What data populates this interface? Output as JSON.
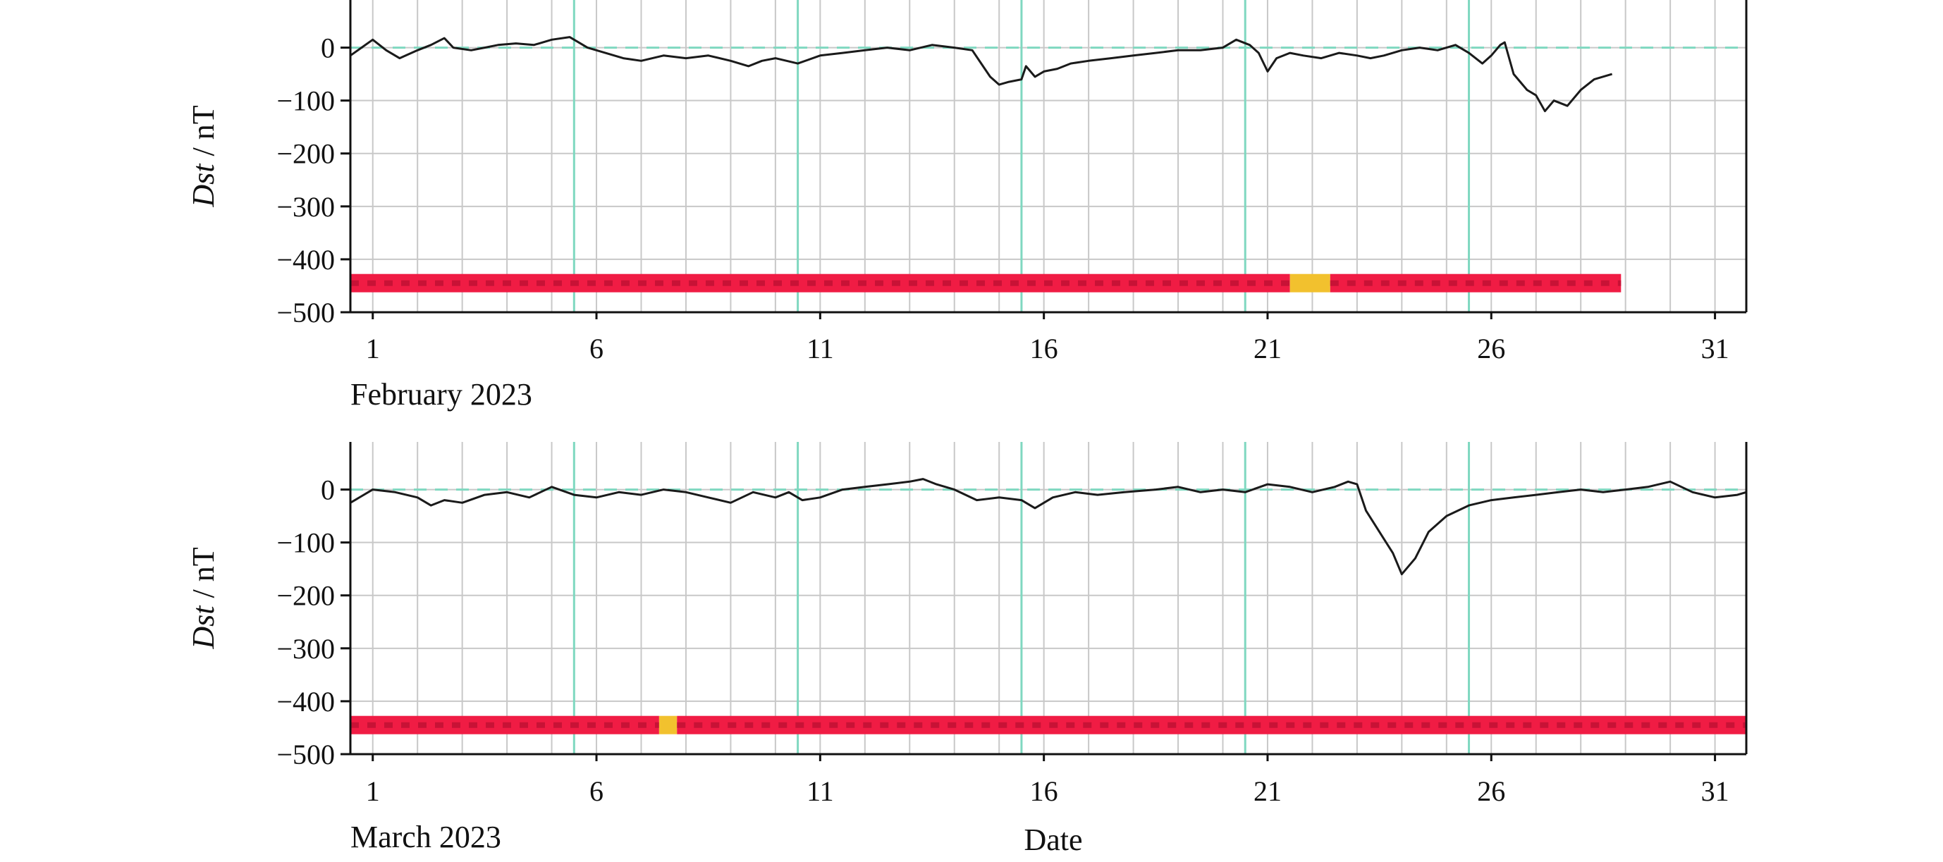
{
  "figure": {
    "date_label": "Date"
  },
  "colors": {
    "trace": "#1a1a1a",
    "grid": "#c8c8c8",
    "major_grid": "#7fd8c0",
    "zero_line": "#7fd8c0",
    "status_red": "#f01c44",
    "status_red_dash": "#c81236",
    "status_yellow": "#f2c12e"
  },
  "chart_data": [
    {
      "type": "line",
      "month_label": "February 2023",
      "ylabel_italic": "Dst",
      "ylabel_unit": " / nT",
      "ylim": [
        -500,
        90
      ],
      "xlim": [
        0.5,
        31.7
      ],
      "x_ticks": [
        1,
        6,
        11,
        16,
        21,
        26,
        31
      ],
      "x_tick_labels": [
        "1",
        "6",
        "11",
        "16",
        "21",
        "26",
        "31"
      ],
      "y_ticks": [
        0,
        -100,
        -200,
        -300,
        -400,
        -500
      ],
      "y_tick_labels": [
        "0",
        "−100",
        "−200",
        "−300",
        "−400",
        "−500"
      ],
      "major_day_lines": [
        5.5,
        10.5,
        15.5,
        20.5,
        25.5
      ],
      "grid": true,
      "series": [
        {
          "x": [
            0.5,
            1.0,
            1.3,
            1.6,
            2.0,
            2.3,
            2.6,
            2.8,
            3.2,
            3.5,
            3.8,
            4.2,
            4.6,
            5.0,
            5.4,
            5.6,
            5.8,
            6.2,
            6.6,
            7.0,
            7.5,
            8.0,
            8.5,
            9.0,
            9.4,
            9.7,
            10.0,
            10.5,
            11.0,
            11.5,
            12.0,
            12.5,
            13.0,
            13.5,
            14.0,
            14.4,
            14.6,
            14.8,
            15.0,
            15.2,
            15.5,
            15.6,
            15.8,
            16.0,
            16.3,
            16.6,
            17.0,
            17.5,
            18.0,
            18.5,
            19.0,
            19.5,
            20.0,
            20.3,
            20.6,
            20.8,
            21.0,
            21.2,
            21.5,
            21.8,
            22.2,
            22.6,
            23.0,
            23.3,
            23.6,
            24.0,
            24.4,
            24.8,
            25.2,
            25.5,
            25.8,
            26.0,
            26.2,
            26.3,
            26.5,
            26.8,
            27.0,
            27.2,
            27.4,
            27.7,
            28.0,
            28.3,
            28.7
          ],
          "y": [
            -15,
            15,
            -5,
            -20,
            -5,
            5,
            18,
            0,
            -5,
            0,
            5,
            8,
            5,
            15,
            20,
            10,
            0,
            -10,
            -20,
            -25,
            -15,
            -20,
            -15,
            -25,
            -35,
            -25,
            -20,
            -30,
            -15,
            -10,
            -5,
            0,
            -5,
            5,
            0,
            -5,
            -30,
            -55,
            -70,
            -65,
            -60,
            -35,
            -55,
            -45,
            -40,
            -30,
            -25,
            -20,
            -15,
            -10,
            -5,
            -5,
            0,
            15,
            5,
            -10,
            -45,
            -20,
            -10,
            -15,
            -20,
            -10,
            -15,
            -20,
            -15,
            -5,
            0,
            -5,
            5,
            -10,
            -30,
            -15,
            5,
            10,
            -50,
            -80,
            -90,
            -120,
            -100,
            -110,
            -80,
            -60,
            -50
          ]
        }
      ],
      "status_bar": {
        "y": -445,
        "end_day": 28.9,
        "segments": [
          {
            "status": "red",
            "start": 0.5,
            "end": 21.5
          },
          {
            "status": "yellow",
            "start": 21.5,
            "end": 22.4
          },
          {
            "status": "red",
            "start": 22.4,
            "end": 28.9
          }
        ]
      }
    },
    {
      "type": "line",
      "month_label": "March 2023",
      "ylabel_italic": "Dst",
      "ylabel_unit": " / nT",
      "ylim": [
        -500,
        90
      ],
      "xlim": [
        0.5,
        31.7
      ],
      "x_ticks": [
        1,
        6,
        11,
        16,
        21,
        26,
        31
      ],
      "x_tick_labels": [
        "1",
        "6",
        "11",
        "16",
        "21",
        "26",
        "31"
      ],
      "y_ticks": [
        0,
        -100,
        -200,
        -300,
        -400,
        -500
      ],
      "y_tick_labels": [
        "0",
        "−100",
        "−200",
        "−300",
        "−400",
        "−500"
      ],
      "major_day_lines": [
        5.5,
        10.5,
        15.5,
        20.5,
        25.5
      ],
      "grid": true,
      "series": [
        {
          "x": [
            0.5,
            1.0,
            1.5,
            2.0,
            2.3,
            2.6,
            3.0,
            3.5,
            4.0,
            4.5,
            5.0,
            5.5,
            6.0,
            6.5,
            7.0,
            7.5,
            8.0,
            8.5,
            9.0,
            9.5,
            10.0,
            10.3,
            10.6,
            11.0,
            11.5,
            12.0,
            12.5,
            13.0,
            13.3,
            13.6,
            14.0,
            14.5,
            15.0,
            15.5,
            15.8,
            16.2,
            16.7,
            17.2,
            17.8,
            18.5,
            19.0,
            19.5,
            20.0,
            20.5,
            21.0,
            21.5,
            22.0,
            22.5,
            22.8,
            23.0,
            23.2,
            23.5,
            23.8,
            24.0,
            24.3,
            24.6,
            25.0,
            25.5,
            26.0,
            26.5,
            27.0,
            27.5,
            28.0,
            28.5,
            29.0,
            29.5,
            30.0,
            30.5,
            31.0,
            31.5,
            31.7
          ],
          "y": [
            -25,
            0,
            -5,
            -15,
            -30,
            -20,
            -25,
            -10,
            -5,
            -15,
            5,
            -10,
            -15,
            -5,
            -10,
            0,
            -5,
            -15,
            -25,
            -5,
            -15,
            -5,
            -20,
            -15,
            0,
            5,
            10,
            15,
            20,
            10,
            0,
            -20,
            -15,
            -20,
            -35,
            -15,
            -5,
            -10,
            -5,
            0,
            5,
            -5,
            0,
            -5,
            10,
            5,
            -5,
            5,
            15,
            10,
            -40,
            -80,
            -120,
            -160,
            -130,
            -80,
            -50,
            -30,
            -20,
            -15,
            -10,
            -5,
            0,
            -5,
            0,
            5,
            15,
            -5,
            -15,
            -10,
            -5
          ]
        }
      ],
      "status_bar": {
        "y": -445,
        "end_day": 31.7,
        "segments": [
          {
            "status": "red",
            "start": 0.5,
            "end": 7.4
          },
          {
            "status": "yellow",
            "start": 7.4,
            "end": 7.8
          },
          {
            "status": "red",
            "start": 7.8,
            "end": 31.7
          }
        ]
      }
    }
  ]
}
